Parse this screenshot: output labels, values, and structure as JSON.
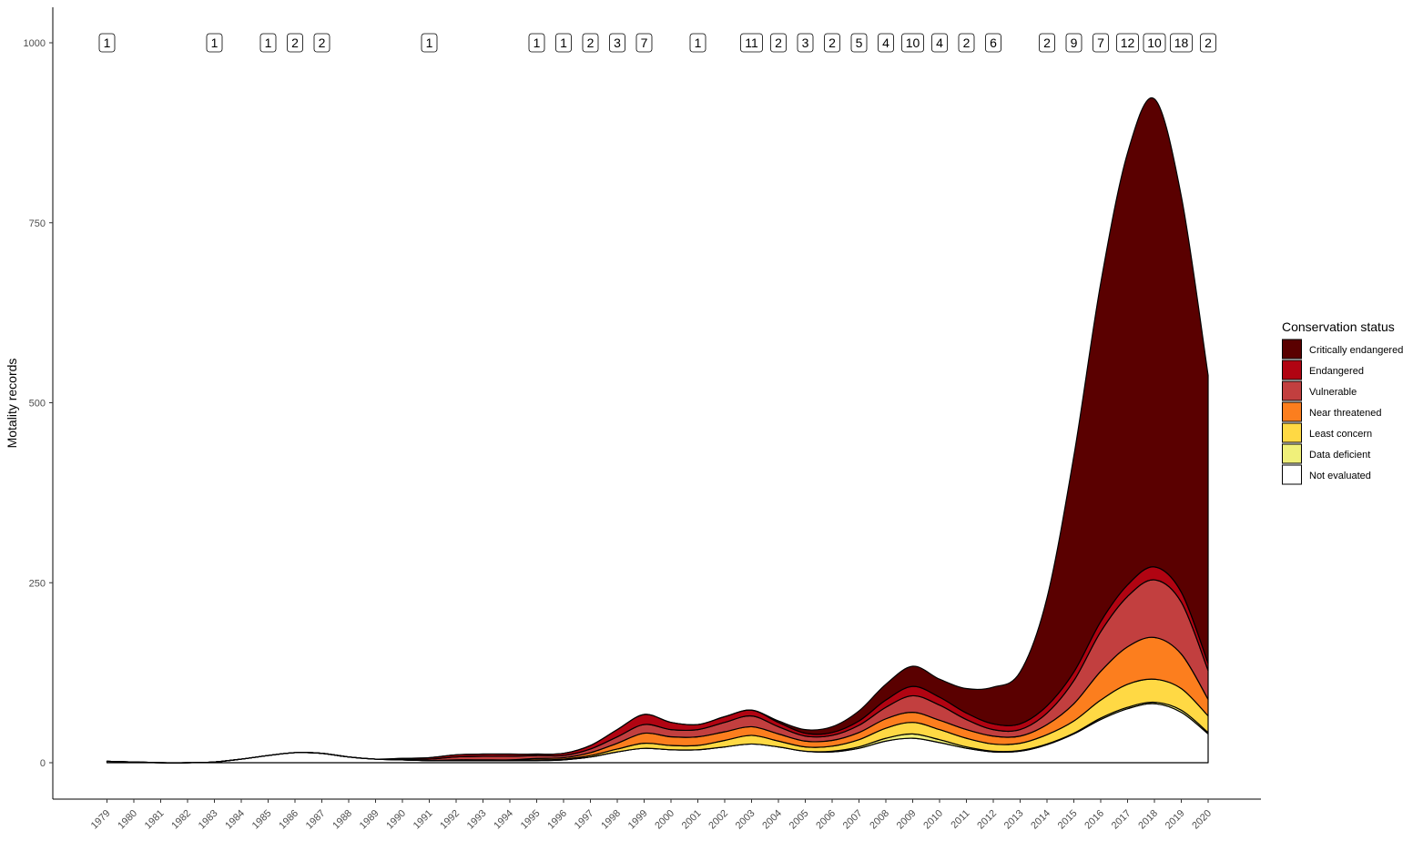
{
  "chart_data": {
    "type": "area",
    "stacked": true,
    "smoothed": true,
    "title": "",
    "xlabel": "",
    "ylabel": "Motality records",
    "ylim": [
      0,
      1000
    ],
    "yticks": [
      0,
      250,
      500,
      750,
      1000
    ],
    "grid": false,
    "legend_position": "right",
    "legend_title": "Conservation status",
    "x": [
      1979,
      1980,
      1981,
      1982,
      1983,
      1984,
      1985,
      1986,
      1987,
      1988,
      1989,
      1990,
      1991,
      1992,
      1993,
      1994,
      1995,
      1996,
      1997,
      1998,
      1999,
      2000,
      2001,
      2002,
      2003,
      2004,
      2005,
      2006,
      2007,
      2008,
      2009,
      2010,
      2011,
      2012,
      2013,
      2014,
      2015,
      2016,
      2017,
      2018,
      2019,
      2020
    ],
    "series": [
      {
        "name": "Not evaluated",
        "color": "#ffffff",
        "values": [
          2,
          1,
          0,
          0,
          1,
          5,
          10,
          14,
          13,
          8,
          5,
          4,
          3,
          3,
          3,
          3,
          3,
          4,
          8,
          15,
          20,
          18,
          18,
          22,
          26,
          22,
          16,
          15,
          20,
          30,
          34,
          28,
          20,
          15,
          16,
          25,
          40,
          60,
          75,
          82,
          70,
          40
        ]
      },
      {
        "name": "Data deficient",
        "color": "#f0f07a",
        "values": [
          0,
          0,
          0,
          0,
          0,
          0,
          0,
          0,
          0,
          0,
          0,
          0,
          0,
          0,
          0,
          0,
          0,
          0,
          0,
          0,
          0,
          0,
          0,
          0,
          0,
          0,
          0,
          1,
          2,
          4,
          6,
          4,
          2,
          1,
          1,
          1,
          1,
          2,
          2,
          2,
          3,
          2
        ]
      },
      {
        "name": "Least concern",
        "color": "#ffd944",
        "values": [
          0,
          0,
          0,
          0,
          0,
          0,
          0,
          0,
          0,
          0,
          0,
          0,
          0,
          0,
          0,
          0,
          1,
          1,
          2,
          4,
          7,
          6,
          6,
          9,
          12,
          8,
          6,
          7,
          10,
          14,
          16,
          14,
          12,
          10,
          10,
          13,
          17,
          25,
          32,
          32,
          30,
          23
        ]
      },
      {
        "name": "Near threatened",
        "color": "#fc7e1e",
        "values": [
          0,
          0,
          0,
          0,
          0,
          0,
          0,
          0,
          0,
          0,
          0,
          0,
          0,
          1,
          1,
          1,
          2,
          2,
          4,
          8,
          14,
          12,
          12,
          12,
          12,
          10,
          8,
          8,
          10,
          13,
          14,
          13,
          12,
          11,
          10,
          14,
          24,
          40,
          52,
          58,
          48,
          23
        ]
      },
      {
        "name": "Vulnerable",
        "color": "#c23f3f",
        "values": [
          0,
          0,
          0,
          0,
          0,
          0,
          0,
          0,
          0,
          0,
          0,
          1,
          2,
          4,
          5,
          5,
          4,
          3,
          5,
          9,
          12,
          10,
          10,
          13,
          15,
          10,
          7,
          7,
          10,
          16,
          23,
          21,
          14,
          9,
          9,
          16,
          32,
          55,
          70,
          80,
          72,
          40
        ]
      },
      {
        "name": "Endangered",
        "color": "#b10412",
        "values": [
          0,
          0,
          0,
          0,
          0,
          0,
          0,
          0,
          0,
          0,
          0,
          1,
          2,
          3,
          3,
          3,
          2,
          3,
          5,
          10,
          14,
          10,
          7,
          8,
          8,
          6,
          4,
          4,
          6,
          10,
          13,
          11,
          9,
          8,
          8,
          10,
          12,
          14,
          16,
          18,
          14,
          10
        ]
      },
      {
        "name": "Critically endangered",
        "color": "#5a0000",
        "values": [
          0,
          0,
          0,
          0,
          0,
          0,
          0,
          0,
          0,
          0,
          0,
          0,
          0,
          0,
          0,
          0,
          0,
          0,
          0,
          0,
          0,
          0,
          0,
          0,
          0,
          2,
          5,
          8,
          14,
          22,
          28,
          25,
          34,
          51,
          72,
          150,
          300,
          470,
          600,
          650,
          550,
          400
        ]
      }
    ],
    "annotations": [
      {
        "year": 1979,
        "count": "1"
      },
      {
        "year": 1983,
        "count": "1"
      },
      {
        "year": 1985,
        "count": "1"
      },
      {
        "year": 1986,
        "count": "2"
      },
      {
        "year": 1987,
        "count": "2"
      },
      {
        "year": 1991,
        "count": "1"
      },
      {
        "year": 1995,
        "count": "1"
      },
      {
        "year": 1996,
        "count": "1"
      },
      {
        "year": 1997,
        "count": "2"
      },
      {
        "year": 1998,
        "count": "3"
      },
      {
        "year": 1999,
        "count": "7"
      },
      {
        "year": 2001,
        "count": "1"
      },
      {
        "year": 2003,
        "count": "11"
      },
      {
        "year": 2004,
        "count": "2"
      },
      {
        "year": 2005,
        "count": "3"
      },
      {
        "year": 2006,
        "count": "2"
      },
      {
        "year": 2007,
        "count": "5"
      },
      {
        "year": 2008,
        "count": "4"
      },
      {
        "year": 2009,
        "count": "10"
      },
      {
        "year": 2010,
        "count": "4"
      },
      {
        "year": 2011,
        "count": "2"
      },
      {
        "year": 2012,
        "count": "6"
      },
      {
        "year": 2014,
        "count": "2"
      },
      {
        "year": 2015,
        "count": "9"
      },
      {
        "year": 2016,
        "count": "7"
      },
      {
        "year": 2017,
        "count": "12"
      },
      {
        "year": 2018,
        "count": "10"
      },
      {
        "year": 2019,
        "count": "18"
      },
      {
        "year": 2020,
        "count": "2"
      }
    ],
    "legend_order": [
      "Critically endangered",
      "Endangered",
      "Vulnerable",
      "Near threatened",
      "Least concern",
      "Data deficient",
      "Not evaluated"
    ]
  }
}
